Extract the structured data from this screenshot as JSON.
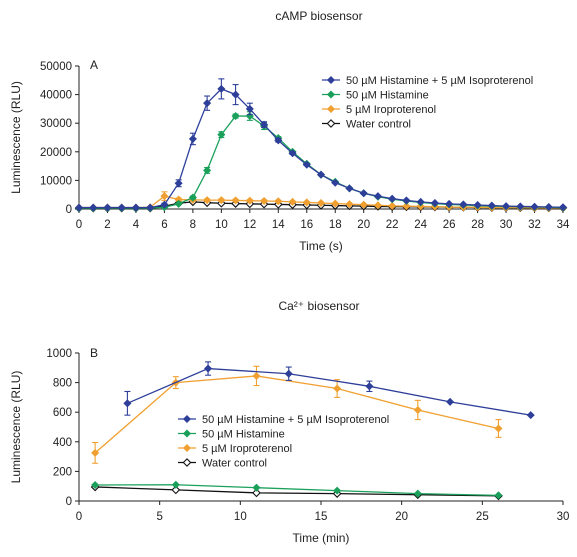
{
  "chart_data": [
    {
      "type": "line",
      "panel_label": "A",
      "title": "cAMP biosensor",
      "xlabel": "Time (s)",
      "ylabel": "Luminescence (RLU)",
      "xlim": [
        0,
        34
      ],
      "ylim": [
        0,
        50000
      ],
      "xticks": [
        0,
        2,
        4,
        6,
        8,
        10,
        12,
        14,
        16,
        18,
        20,
        22,
        24,
        26,
        28,
        30,
        32,
        34
      ],
      "yticks": [
        0,
        10000,
        20000,
        30000,
        40000,
        50000
      ],
      "grid": false,
      "legend_position": "top-right",
      "series": [
        {
          "name": "50 µM Histamine + 5 µM Isoproterenol",
          "color": "#2e3f9a",
          "marker": "diamond-filled",
          "x": [
            0,
            1,
            2,
            3,
            4,
            5,
            6,
            7,
            8,
            9,
            10,
            11,
            12,
            13,
            14,
            15,
            16,
            17,
            18,
            19,
            20,
            21,
            22,
            23,
            24,
            25,
            26,
            27,
            28,
            29,
            30,
            31,
            32,
            33,
            34
          ],
          "y": [
            500,
            500,
            500,
            500,
            500,
            500,
            1500,
            9000,
            24500,
            37000,
            42000,
            40000,
            35000,
            29500,
            24000,
            19500,
            15500,
            12000,
            9200,
            7200,
            5500,
            4500,
            3600,
            3000,
            2500,
            2100,
            1800,
            1600,
            1400,
            1200,
            1000,
            900,
            800,
            700,
            600
          ],
          "err": [
            0,
            0,
            0,
            0,
            0,
            0,
            500,
            1200,
            2000,
            2500,
            3500,
            3500,
            2000,
            1000,
            600,
            400,
            300,
            300,
            200,
            200,
            200,
            0,
            0,
            0,
            0,
            0,
            0,
            0,
            0,
            0,
            0,
            0,
            0,
            0,
            0
          ]
        },
        {
          "name": "50 µM Histamine",
          "color": "#1aa05a",
          "marker": "diamond-filled",
          "x": [
            0,
            1,
            2,
            3,
            4,
            5,
            6,
            7,
            8,
            9,
            10,
            11,
            12,
            13,
            14,
            15,
            16,
            17,
            18,
            19,
            20,
            21,
            22,
            23,
            24,
            25,
            26,
            27,
            28,
            29,
            30,
            31,
            32,
            33,
            34
          ],
          "y": [
            300,
            300,
            300,
            300,
            300,
            300,
            600,
            1800,
            4000,
            13500,
            26000,
            32500,
            32500,
            29000,
            24800,
            20000,
            15800,
            12000,
            9500,
            7200,
            5500,
            4300,
            3400,
            2800,
            2300,
            1900,
            1600,
            1400,
            1200,
            1000,
            900,
            800,
            700,
            600,
            500
          ],
          "err": [
            0,
            0,
            0,
            0,
            0,
            0,
            0,
            0,
            500,
            1000,
            1000,
            700,
            1500,
            1200,
            500,
            300,
            300,
            0,
            0,
            0,
            0,
            0,
            0,
            0,
            0,
            0,
            0,
            0,
            0,
            0,
            0,
            0,
            0,
            0,
            0
          ]
        },
        {
          "name": "5 µM Iroproterenol",
          "color": "#f0a030",
          "marker": "diamond-filled",
          "x": [
            0,
            1,
            2,
            3,
            4,
            5,
            6,
            7,
            8,
            9,
            10,
            11,
            12,
            13,
            14,
            15,
            16,
            17,
            18,
            19,
            20,
            21,
            22,
            23,
            24,
            25,
            26,
            27,
            28,
            29,
            30,
            31,
            32,
            33,
            34
          ],
          "y": [
            500,
            500,
            500,
            500,
            500,
            600,
            4500,
            3300,
            3200,
            3100,
            3100,
            3000,
            2900,
            2800,
            2700,
            2500,
            2300,
            2100,
            1900,
            1700,
            1500,
            1300,
            1100,
            1000,
            900,
            800,
            700,
            600,
            600,
            500,
            500,
            500,
            400,
            400,
            400
          ],
          "err": [
            0,
            0,
            0,
            0,
            0,
            0,
            1500,
            500,
            500,
            400,
            400,
            400,
            400,
            400,
            300,
            300,
            300,
            300,
            200,
            200,
            200,
            0,
            0,
            0,
            0,
            0,
            0,
            0,
            0,
            0,
            0,
            0,
            0,
            0,
            0
          ]
        },
        {
          "name": "Water control",
          "color": "#111111",
          "marker": "diamond-open",
          "x": [
            0,
            1,
            2,
            3,
            4,
            5,
            6,
            7,
            8,
            9,
            10,
            11,
            12,
            13,
            14,
            15,
            16,
            17,
            18,
            19,
            20,
            21,
            22,
            23,
            24,
            25,
            26,
            27,
            28,
            29,
            30,
            31,
            32,
            33,
            34
          ],
          "y": [
            300,
            300,
            300,
            300,
            300,
            300,
            1000,
            2000,
            2500,
            2200,
            2000,
            1900,
            1800,
            1700,
            1600,
            1500,
            1400,
            1300,
            1200,
            1100,
            1000,
            900,
            850,
            800,
            750,
            700,
            650,
            600,
            550,
            500,
            500,
            450,
            450,
            400,
            400
          ],
          "err": []
        }
      ]
    },
    {
      "type": "line",
      "panel_label": "B",
      "title": "Ca²⁺ biosensor",
      "xlabel": "Time (min)",
      "ylabel": "Luminescence (RLU)",
      "xlim": [
        0,
        30
      ],
      "ylim": [
        0,
        1000
      ],
      "xticks": [
        0,
        5,
        10,
        15,
        20,
        25,
        30
      ],
      "yticks": [
        0,
        200,
        400,
        600,
        800,
        1000
      ],
      "grid": false,
      "legend_position": "center",
      "series": [
        {
          "name": "50 µM Histamine + 5 µM Isoproterenol",
          "color": "#2e3f9a",
          "marker": "diamond-filled",
          "x": [
            3,
            8,
            13,
            18,
            23,
            28
          ],
          "y": [
            660,
            895,
            860,
            775,
            670,
            580
          ],
          "err": [
            80,
            45,
            45,
            35,
            0,
            0
          ]
        },
        {
          "name": "50 µM Histamine",
          "color": "#1aa05a",
          "marker": "diamond-filled",
          "x": [
            1,
            6,
            11,
            16,
            21,
            26
          ],
          "y": [
            108,
            110,
            90,
            70,
            50,
            38
          ],
          "err": []
        },
        {
          "name": "5 µM Iroproterenol",
          "color": "#f0a030",
          "marker": "diamond-filled",
          "x": [
            1,
            6,
            11,
            16,
            21,
            26
          ],
          "y": [
            325,
            800,
            845,
            760,
            615,
            490
          ],
          "err": [
            70,
            40,
            65,
            60,
            65,
            60
          ]
        },
        {
          "name": "Water control",
          "color": "#111111",
          "marker": "diamond-open",
          "x": [
            1,
            6,
            11,
            16,
            21,
            26
          ],
          "y": [
            95,
            75,
            55,
            50,
            42,
            35
          ],
          "err": []
        }
      ]
    }
  ]
}
